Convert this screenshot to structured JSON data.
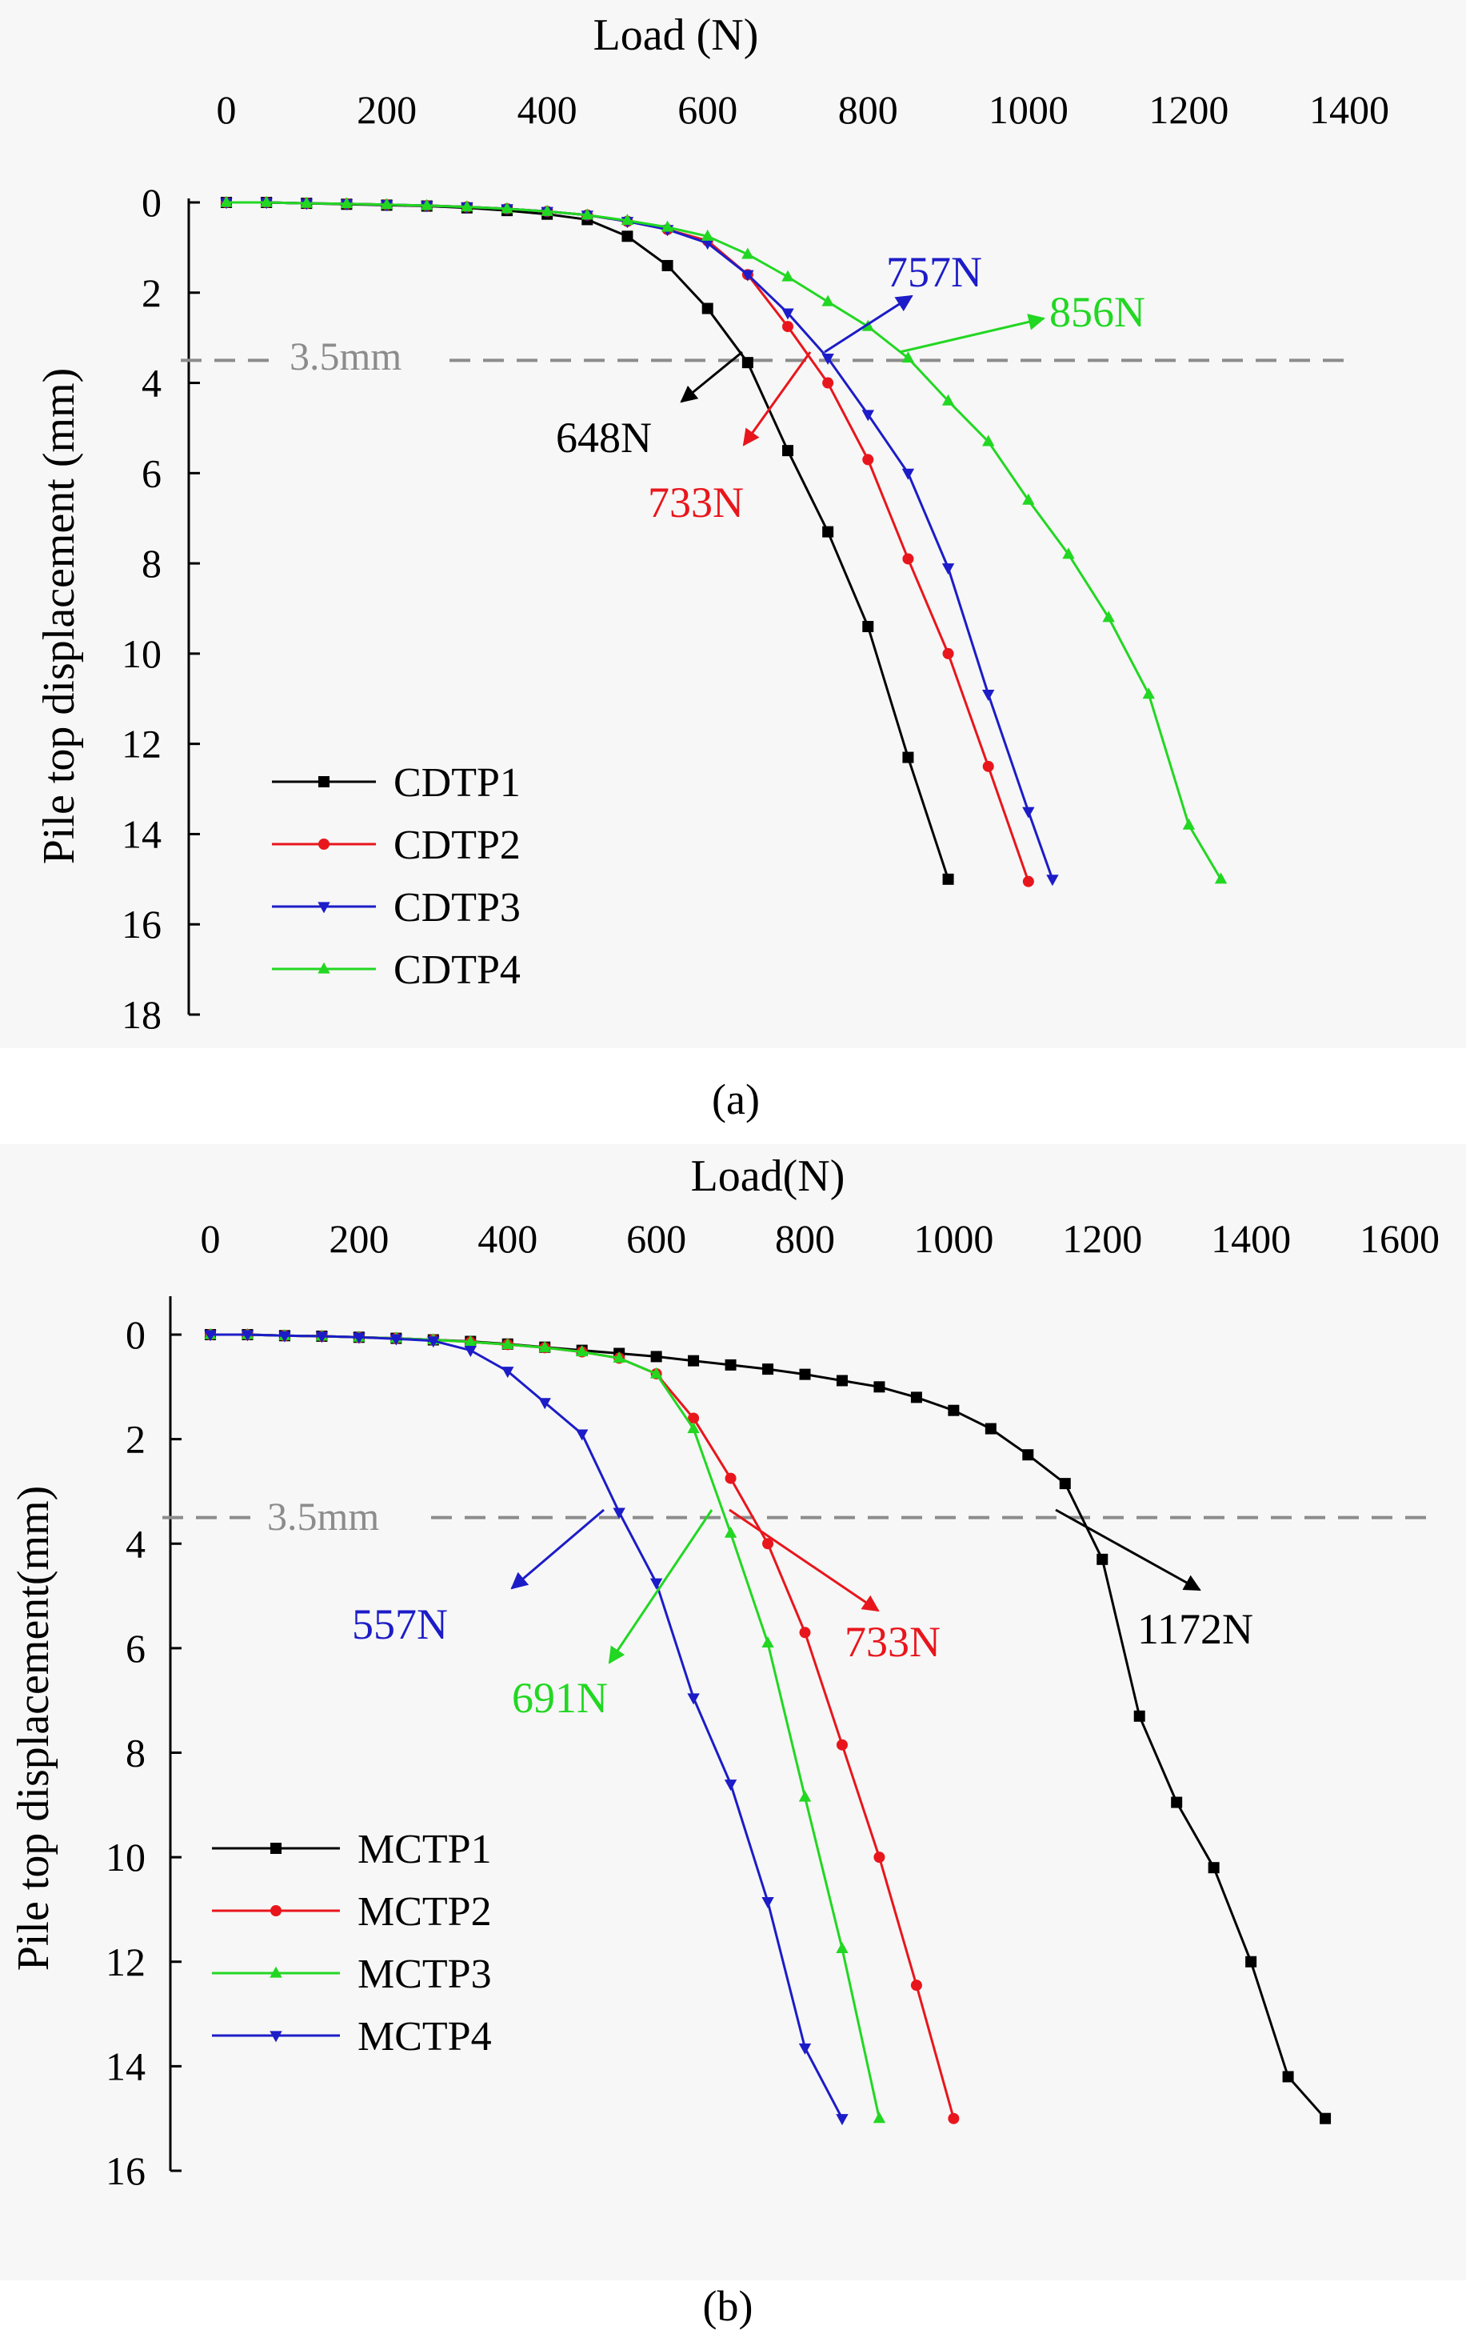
{
  "chart_data": [
    {
      "type": "line",
      "panel_label": "(a)",
      "xlabel": "Load (N)",
      "ylabel": "Pile top displacement (mm)",
      "xlim": [
        0,
        1400
      ],
      "ylim": [
        0,
        18
      ],
      "x_axis_position": "top",
      "y_axis_inverted": true,
      "grid": false,
      "legend_position": "bottom-left",
      "x_ticks": [
        "0",
        "200",
        "400",
        "600",
        "800",
        "1000",
        "1200",
        "1400"
      ],
      "y_ticks": [
        "0",
        "2",
        "4",
        "6",
        "8",
        "10",
        "12",
        "14",
        "16",
        "18"
      ],
      "reference_line": {
        "value": 3.5,
        "label": "3.5mm",
        "color": "#8c8c8c"
      },
      "series": [
        {
          "name": "CDTP1",
          "color": "#000000",
          "marker": "square",
          "points": [
            [
              0,
              0
            ],
            [
              50,
              0
            ],
            [
              100,
              0.02
            ],
            [
              150,
              0.04
            ],
            [
              200,
              0.06
            ],
            [
              250,
              0.08
            ],
            [
              300,
              0.12
            ],
            [
              350,
              0.18
            ],
            [
              400,
              0.26
            ],
            [
              450,
              0.38
            ],
            [
              500,
              0.75
            ],
            [
              550,
              1.4
            ],
            [
              600,
              2.35
            ],
            [
              650,
              3.55
            ],
            [
              700,
              5.5
            ],
            [
              750,
              7.3
            ],
            [
              800,
              9.4
            ],
            [
              850,
              12.3
            ],
            [
              900,
              15.0
            ]
          ]
        },
        {
          "name": "CDTP2",
          "color": "#e8161c",
          "marker": "circle",
          "points": [
            [
              0,
              0
            ],
            [
              50,
              0
            ],
            [
              100,
              0.02
            ],
            [
              150,
              0.03
            ],
            [
              200,
              0.05
            ],
            [
              250,
              0.07
            ],
            [
              300,
              0.1
            ],
            [
              350,
              0.14
            ],
            [
              400,
              0.2
            ],
            [
              450,
              0.28
            ],
            [
              500,
              0.42
            ],
            [
              550,
              0.6
            ],
            [
              600,
              0.85
            ],
            [
              650,
              1.6
            ],
            [
              700,
              2.75
            ],
            [
              750,
              4.0
            ],
            [
              800,
              5.7
            ],
            [
              850,
              7.9
            ],
            [
              900,
              10.0
            ],
            [
              950,
              12.5
            ],
            [
              1000,
              15.05
            ]
          ]
        },
        {
          "name": "CDTP3",
          "color": "#1c1cc8",
          "marker": "triangle-down",
          "points": [
            [
              0,
              0
            ],
            [
              50,
              0
            ],
            [
              100,
              0.02
            ],
            [
              150,
              0.03
            ],
            [
              200,
              0.05
            ],
            [
              250,
              0.07
            ],
            [
              300,
              0.1
            ],
            [
              350,
              0.14
            ],
            [
              400,
              0.2
            ],
            [
              450,
              0.28
            ],
            [
              500,
              0.42
            ],
            [
              550,
              0.6
            ],
            [
              600,
              0.9
            ],
            [
              650,
              1.6
            ],
            [
              700,
              2.45
            ],
            [
              750,
              3.45
            ],
            [
              800,
              4.7
            ],
            [
              850,
              6.0
            ],
            [
              900,
              8.1
            ],
            [
              950,
              10.9
            ],
            [
              1000,
              13.5
            ],
            [
              1030,
              15.0
            ]
          ]
        },
        {
          "name": "CDTP4",
          "color": "#22d722",
          "marker": "triangle-up",
          "points": [
            [
              0,
              0
            ],
            [
              50,
              0
            ],
            [
              100,
              0.02
            ],
            [
              150,
              0.03
            ],
            [
              200,
              0.05
            ],
            [
              250,
              0.07
            ],
            [
              300,
              0.1
            ],
            [
              350,
              0.14
            ],
            [
              400,
              0.2
            ],
            [
              450,
              0.28
            ],
            [
              500,
              0.4
            ],
            [
              550,
              0.55
            ],
            [
              600,
              0.75
            ],
            [
              650,
              1.15
            ],
            [
              700,
              1.65
            ],
            [
              750,
              2.2
            ],
            [
              800,
              2.75
            ],
            [
              850,
              3.45
            ],
            [
              900,
              4.4
            ],
            [
              950,
              5.3
            ],
            [
              1000,
              6.6
            ],
            [
              1050,
              7.8
            ],
            [
              1100,
              9.2
            ],
            [
              1150,
              10.9
            ],
            [
              1200,
              13.8
            ],
            [
              1240,
              15.0
            ]
          ]
        }
      ],
      "annotations": [
        {
          "text": "648N",
          "color": "#000000"
        },
        {
          "text": "733N",
          "color": "#e8161c"
        },
        {
          "text": "757N",
          "color": "#1c1cc8"
        },
        {
          "text": "856N",
          "color": "#22d722"
        }
      ]
    },
    {
      "type": "line",
      "panel_label": "(b)",
      "xlabel": "Load(N)",
      "ylabel": "Pile top displacement(mm)",
      "xlim": [
        0,
        1600
      ],
      "ylim": [
        0,
        16
      ],
      "x_axis_position": "top",
      "y_axis_inverted": true,
      "grid": false,
      "legend_position": "bottom-left",
      "x_ticks": [
        "0",
        "200",
        "400",
        "600",
        "800",
        "1000",
        "1200",
        "1400",
        "1600"
      ],
      "y_ticks": [
        "0",
        "2",
        "4",
        "6",
        "8",
        "10",
        "12",
        "14",
        "16"
      ],
      "reference_line": {
        "value": 3.5,
        "label": "3.5mm",
        "color": "#8c8c8c"
      },
      "series": [
        {
          "name": "MCTP1",
          "color": "#000000",
          "marker": "square",
          "points": [
            [
              0,
              0
            ],
            [
              50,
              0
            ],
            [
              100,
              0.02
            ],
            [
              150,
              0.03
            ],
            [
              200,
              0.05
            ],
            [
              250,
              0.07
            ],
            [
              300,
              0.1
            ],
            [
              350,
              0.13
            ],
            [
              400,
              0.18
            ],
            [
              450,
              0.24
            ],
            [
              500,
              0.3
            ],
            [
              550,
              0.36
            ],
            [
              600,
              0.42
            ],
            [
              650,
              0.5
            ],
            [
              700,
              0.58
            ],
            [
              750,
              0.66
            ],
            [
              800,
              0.76
            ],
            [
              850,
              0.88
            ],
            [
              900,
              1.0
            ],
            [
              950,
              1.2
            ],
            [
              1000,
              1.45
            ],
            [
              1050,
              1.8
            ],
            [
              1100,
              2.3
            ],
            [
              1150,
              2.85
            ],
            [
              1200,
              4.3
            ],
            [
              1250,
              7.3
            ],
            [
              1300,
              8.95
            ],
            [
              1350,
              10.2
            ],
            [
              1400,
              12.0
            ],
            [
              1450,
              14.2
            ],
            [
              1500,
              15.0
            ]
          ]
        },
        {
          "name": "MCTP2",
          "color": "#e8161c",
          "marker": "circle",
          "points": [
            [
              0,
              0
            ],
            [
              50,
              0
            ],
            [
              100,
              0.02
            ],
            [
              150,
              0.03
            ],
            [
              200,
              0.05
            ],
            [
              250,
              0.07
            ],
            [
              300,
              0.1
            ],
            [
              350,
              0.14
            ],
            [
              400,
              0.19
            ],
            [
              450,
              0.25
            ],
            [
              500,
              0.33
            ],
            [
              550,
              0.45
            ],
            [
              600,
              0.75
            ],
            [
              650,
              1.6
            ],
            [
              700,
              2.75
            ],
            [
              750,
              4.0
            ],
            [
              800,
              5.7
            ],
            [
              850,
              7.85
            ],
            [
              900,
              10.0
            ],
            [
              950,
              12.45
            ],
            [
              1000,
              15.0
            ]
          ]
        },
        {
          "name": "MCTP3",
          "color": "#22d722",
          "marker": "triangle-up",
          "points": [
            [
              0,
              0
            ],
            [
              50,
              0
            ],
            [
              100,
              0.02
            ],
            [
              150,
              0.03
            ],
            [
              200,
              0.05
            ],
            [
              250,
              0.07
            ],
            [
              300,
              0.1
            ],
            [
              350,
              0.14
            ],
            [
              400,
              0.19
            ],
            [
              450,
              0.25
            ],
            [
              500,
              0.33
            ],
            [
              550,
              0.45
            ],
            [
              600,
              0.75
            ],
            [
              650,
              1.8
            ],
            [
              700,
              3.8
            ],
            [
              750,
              5.9
            ],
            [
              800,
              8.85
            ],
            [
              850,
              11.75
            ],
            [
              900,
              15.0
            ]
          ]
        },
        {
          "name": "MCTP4",
          "color": "#1c1cc8",
          "marker": "triangle-down",
          "points": [
            [
              0,
              0
            ],
            [
              50,
              0
            ],
            [
              100,
              0.02
            ],
            [
              150,
              0.03
            ],
            [
              200,
              0.05
            ],
            [
              250,
              0.08
            ],
            [
              300,
              0.12
            ],
            [
              350,
              0.3
            ],
            [
              400,
              0.7
            ],
            [
              450,
              1.3
            ],
            [
              500,
              1.9
            ],
            [
              550,
              3.4
            ],
            [
              600,
              4.75
            ],
            [
              650,
              6.95
            ],
            [
              700,
              8.6
            ],
            [
              750,
              10.85
            ],
            [
              800,
              13.65
            ],
            [
              850,
              15.0
            ]
          ]
        }
      ],
      "annotations": [
        {
          "text": "557N",
          "color": "#1c1cc8"
        },
        {
          "text": "691N",
          "color": "#22d722"
        },
        {
          "text": "733N",
          "color": "#e8161c"
        },
        {
          "text": "1172N",
          "color": "#000000"
        }
      ]
    }
  ]
}
